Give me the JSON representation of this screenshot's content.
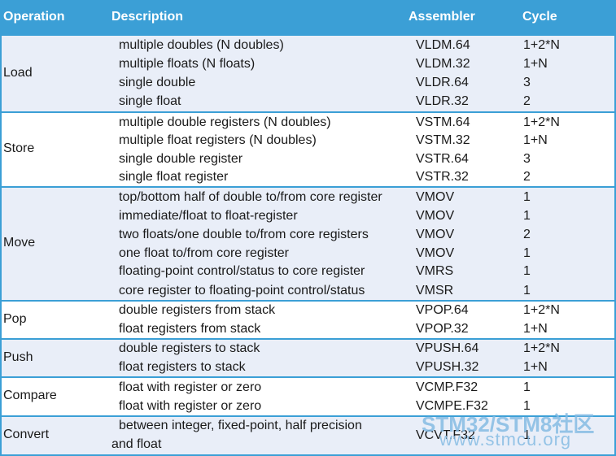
{
  "header": {
    "operation": "Operation",
    "description": "Description",
    "assembler": "Assembler",
    "cycle": "Cycle"
  },
  "groups": {
    "load": {
      "name": "Load",
      "rows": [
        {
          "desc": "multiple doubles (N doubles)",
          "asm": "VLDM.64",
          "cycle": "1+2*N"
        },
        {
          "desc": "multiple floats (N floats)",
          "asm": "VLDM.32",
          "cycle": "1+N"
        },
        {
          "desc": "single double",
          "asm": "VLDR.64",
          "cycle": "3"
        },
        {
          "desc": "single float",
          "asm": "VLDR.32",
          "cycle": "2"
        }
      ]
    },
    "store": {
      "name": "Store",
      "rows": [
        {
          "desc": "multiple double registers (N doubles)",
          "asm": "VSTM.64",
          "cycle": "1+2*N"
        },
        {
          "desc": "multiple float registers (N doubles)",
          "asm": "VSTM.32",
          "cycle": "1+N"
        },
        {
          "desc": "single double register",
          "asm": "VSTR.64",
          "cycle": "3"
        },
        {
          "desc": "single float register",
          "asm": "VSTR.32",
          "cycle": "2"
        }
      ]
    },
    "move": {
      "name": "Move",
      "rows": [
        {
          "desc": "top/bottom half of double to/from core register",
          "asm": "VMOV",
          "cycle": "1"
        },
        {
          "desc": "immediate/float to float-register",
          "asm": "VMOV",
          "cycle": "1"
        },
        {
          "desc": "two floats/one double to/from core registers",
          "asm": "VMOV",
          "cycle": "2"
        },
        {
          "desc": "one float to/from core register",
          "asm": "VMOV",
          "cycle": "1"
        },
        {
          "desc": "floating-point control/status to core register",
          "asm": "VMRS",
          "cycle": "1"
        },
        {
          "desc": "core register to floating-point control/status",
          "asm": "VMSR",
          "cycle": "1"
        }
      ]
    },
    "pop": {
      "name": "Pop",
      "rows": [
        {
          "desc": "double registers from stack",
          "asm": "VPOP.64",
          "cycle": "1+2*N"
        },
        {
          "desc": "float registers from stack",
          "asm": "VPOP.32",
          "cycle": "1+N"
        }
      ]
    },
    "push": {
      "name": "Push",
      "rows": [
        {
          "desc": "double registers to stack",
          "asm": "VPUSH.64",
          "cycle": "1+2*N"
        },
        {
          "desc": "float registers to stack",
          "asm": "VPUSH.32",
          "cycle": "1+N"
        }
      ]
    },
    "compare": {
      "name": "Compare",
      "rows": [
        {
          "desc": "float with register or zero",
          "asm": "VCMP.F32",
          "cycle": "1"
        },
        {
          "desc": "float with register or zero",
          "asm": "VCMPE.F32",
          "cycle": "1"
        }
      ]
    },
    "convert": {
      "name": "Convert",
      "desc_line1": "between integer, fixed-point, half precision",
      "desc_line2": "and float",
      "asm": "VCVT.F32",
      "cycle": "1"
    }
  },
  "watermark": {
    "line1": "STM32/STM8社区",
    "line2": "www.stmcu.org"
  }
}
